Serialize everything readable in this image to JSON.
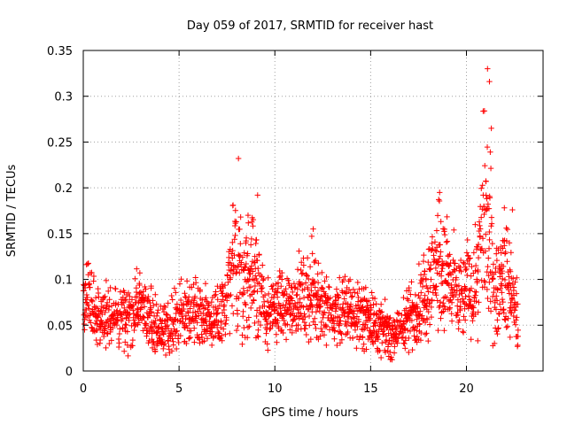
{
  "chart_data": {
    "type": "scatter",
    "title": "Day 059 of 2017, SRMTID for receiver hast",
    "xlabel": "GPS time / hours",
    "ylabel": "SRMTID / TECUs",
    "xlim": [
      0,
      24
    ],
    "ylim": [
      0,
      0.35
    ],
    "xticks": [
      0,
      5,
      10,
      15,
      20
    ],
    "xtick_labels": [
      "0",
      "5",
      "10",
      "15",
      "20"
    ],
    "yticks": [
      0,
      0.05,
      0.1,
      0.15,
      0.2,
      0.25,
      0.3,
      0.35
    ],
    "ytick_labels": [
      "0",
      "0.05",
      "0.1",
      "0.15",
      "0.2",
      "0.25",
      "0.3",
      "0.35"
    ],
    "grid": true,
    "marker": "+",
    "color": "#ff0000",
    "x_range_observed": [
      0,
      22.7
    ],
    "sample_interval_hours": 0.0167,
    "profile": [
      {
        "t": 0.0,
        "base": 0.065,
        "spread": 0.02
      },
      {
        "t": 0.3,
        "base": 0.085,
        "spread": 0.03
      },
      {
        "t": 0.5,
        "base": 0.06,
        "spread": 0.02
      },
      {
        "t": 1.0,
        "base": 0.06,
        "spread": 0.02
      },
      {
        "t": 2.0,
        "base": 0.055,
        "spread": 0.02
      },
      {
        "t": 3.0,
        "base": 0.07,
        "spread": 0.025
      },
      {
        "t": 4.0,
        "base": 0.045,
        "spread": 0.015
      },
      {
        "t": 5.0,
        "base": 0.06,
        "spread": 0.02
      },
      {
        "t": 6.0,
        "base": 0.065,
        "spread": 0.02
      },
      {
        "t": 7.0,
        "base": 0.055,
        "spread": 0.02
      },
      {
        "t": 7.5,
        "base": 0.08,
        "spread": 0.03
      },
      {
        "t": 8.0,
        "base": 0.13,
        "spread": 0.05
      },
      {
        "t": 8.5,
        "base": 0.09,
        "spread": 0.04
      },
      {
        "t": 9.0,
        "base": 0.11,
        "spread": 0.05
      },
      {
        "t": 9.5,
        "base": 0.06,
        "spread": 0.02
      },
      {
        "t": 10.5,
        "base": 0.07,
        "spread": 0.025
      },
      {
        "t": 12.0,
        "base": 0.085,
        "spread": 0.03
      },
      {
        "t": 13.0,
        "base": 0.06,
        "spread": 0.02
      },
      {
        "t": 14.0,
        "base": 0.065,
        "spread": 0.025
      },
      {
        "t": 15.0,
        "base": 0.055,
        "spread": 0.02
      },
      {
        "t": 16.0,
        "base": 0.038,
        "spread": 0.015
      },
      {
        "t": 16.5,
        "base": 0.045,
        "spread": 0.015
      },
      {
        "t": 17.5,
        "base": 0.07,
        "spread": 0.025
      },
      {
        "t": 18.5,
        "base": 0.12,
        "spread": 0.04
      },
      {
        "t": 19.5,
        "base": 0.08,
        "spread": 0.03
      },
      {
        "t": 20.5,
        "base": 0.095,
        "spread": 0.03
      },
      {
        "t": 21.0,
        "base": 0.18,
        "spread": 0.08
      },
      {
        "t": 21.5,
        "base": 0.085,
        "spread": 0.03
      },
      {
        "t": 22.0,
        "base": 0.11,
        "spread": 0.04
      },
      {
        "t": 22.7,
        "base": 0.055,
        "spread": 0.02
      }
    ],
    "peaks": [
      {
        "x": 8.1,
        "y": 0.232
      },
      {
        "x": 8.6,
        "y": 0.17
      },
      {
        "x": 9.1,
        "y": 0.192
      },
      {
        "x": 12.0,
        "y": 0.155
      },
      {
        "x": 18.6,
        "y": 0.195
      },
      {
        "x": 21.1,
        "y": 0.33
      },
      {
        "x": 21.2,
        "y": 0.316
      },
      {
        "x": 21.3,
        "y": 0.265
      },
      {
        "x": 22.4,
        "y": 0.176
      }
    ]
  }
}
